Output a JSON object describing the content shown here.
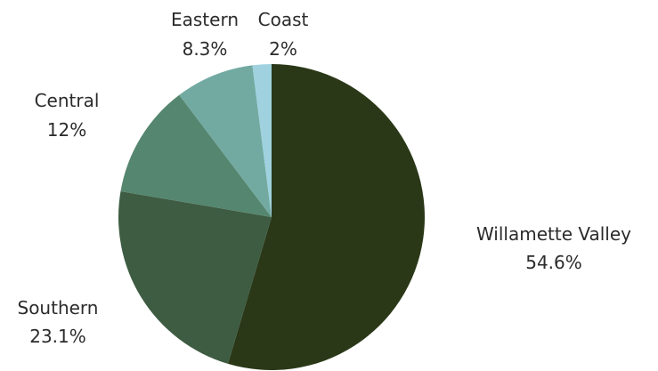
{
  "chart_data": {
    "type": "pie",
    "categories": [
      "Willamette Valley",
      "Southern",
      "Central",
      "Eastern",
      "Coast"
    ],
    "values": [
      54.6,
      23.1,
      12,
      8.3,
      2
    ],
    "value_labels": [
      "54.6%",
      "23.1%",
      "12%",
      "8.3%",
      "2%"
    ],
    "colors": [
      "#2a3818",
      "#3d5c42",
      "#55866f",
      "#72aaa2",
      "#9fd2de"
    ],
    "title": "",
    "legend": "none"
  }
}
